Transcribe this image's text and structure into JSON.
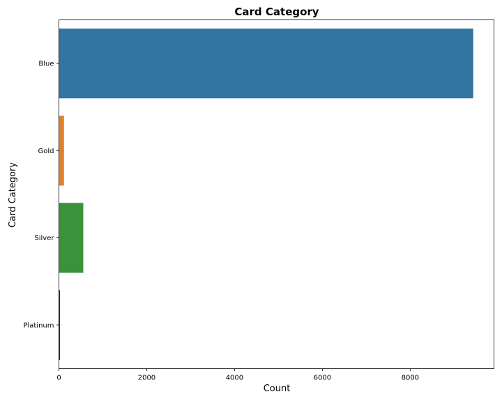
{
  "chart_data": {
    "type": "bar",
    "orientation": "horizontal",
    "title": "Card Category",
    "xlabel": "Count",
    "ylabel": "Card Category",
    "categories": [
      "Blue",
      "Gold",
      "Silver",
      "Platinum"
    ],
    "values": [
      9436,
      116,
      555,
      20
    ],
    "colors": [
      "#3274a1",
      "#e1812c",
      "#3a923a",
      "#7b0a0a"
    ],
    "xlim": [
      0,
      9908
    ],
    "xticks": [
      0,
      2000,
      4000,
      6000,
      8000
    ],
    "grid": false,
    "legend": "none"
  }
}
